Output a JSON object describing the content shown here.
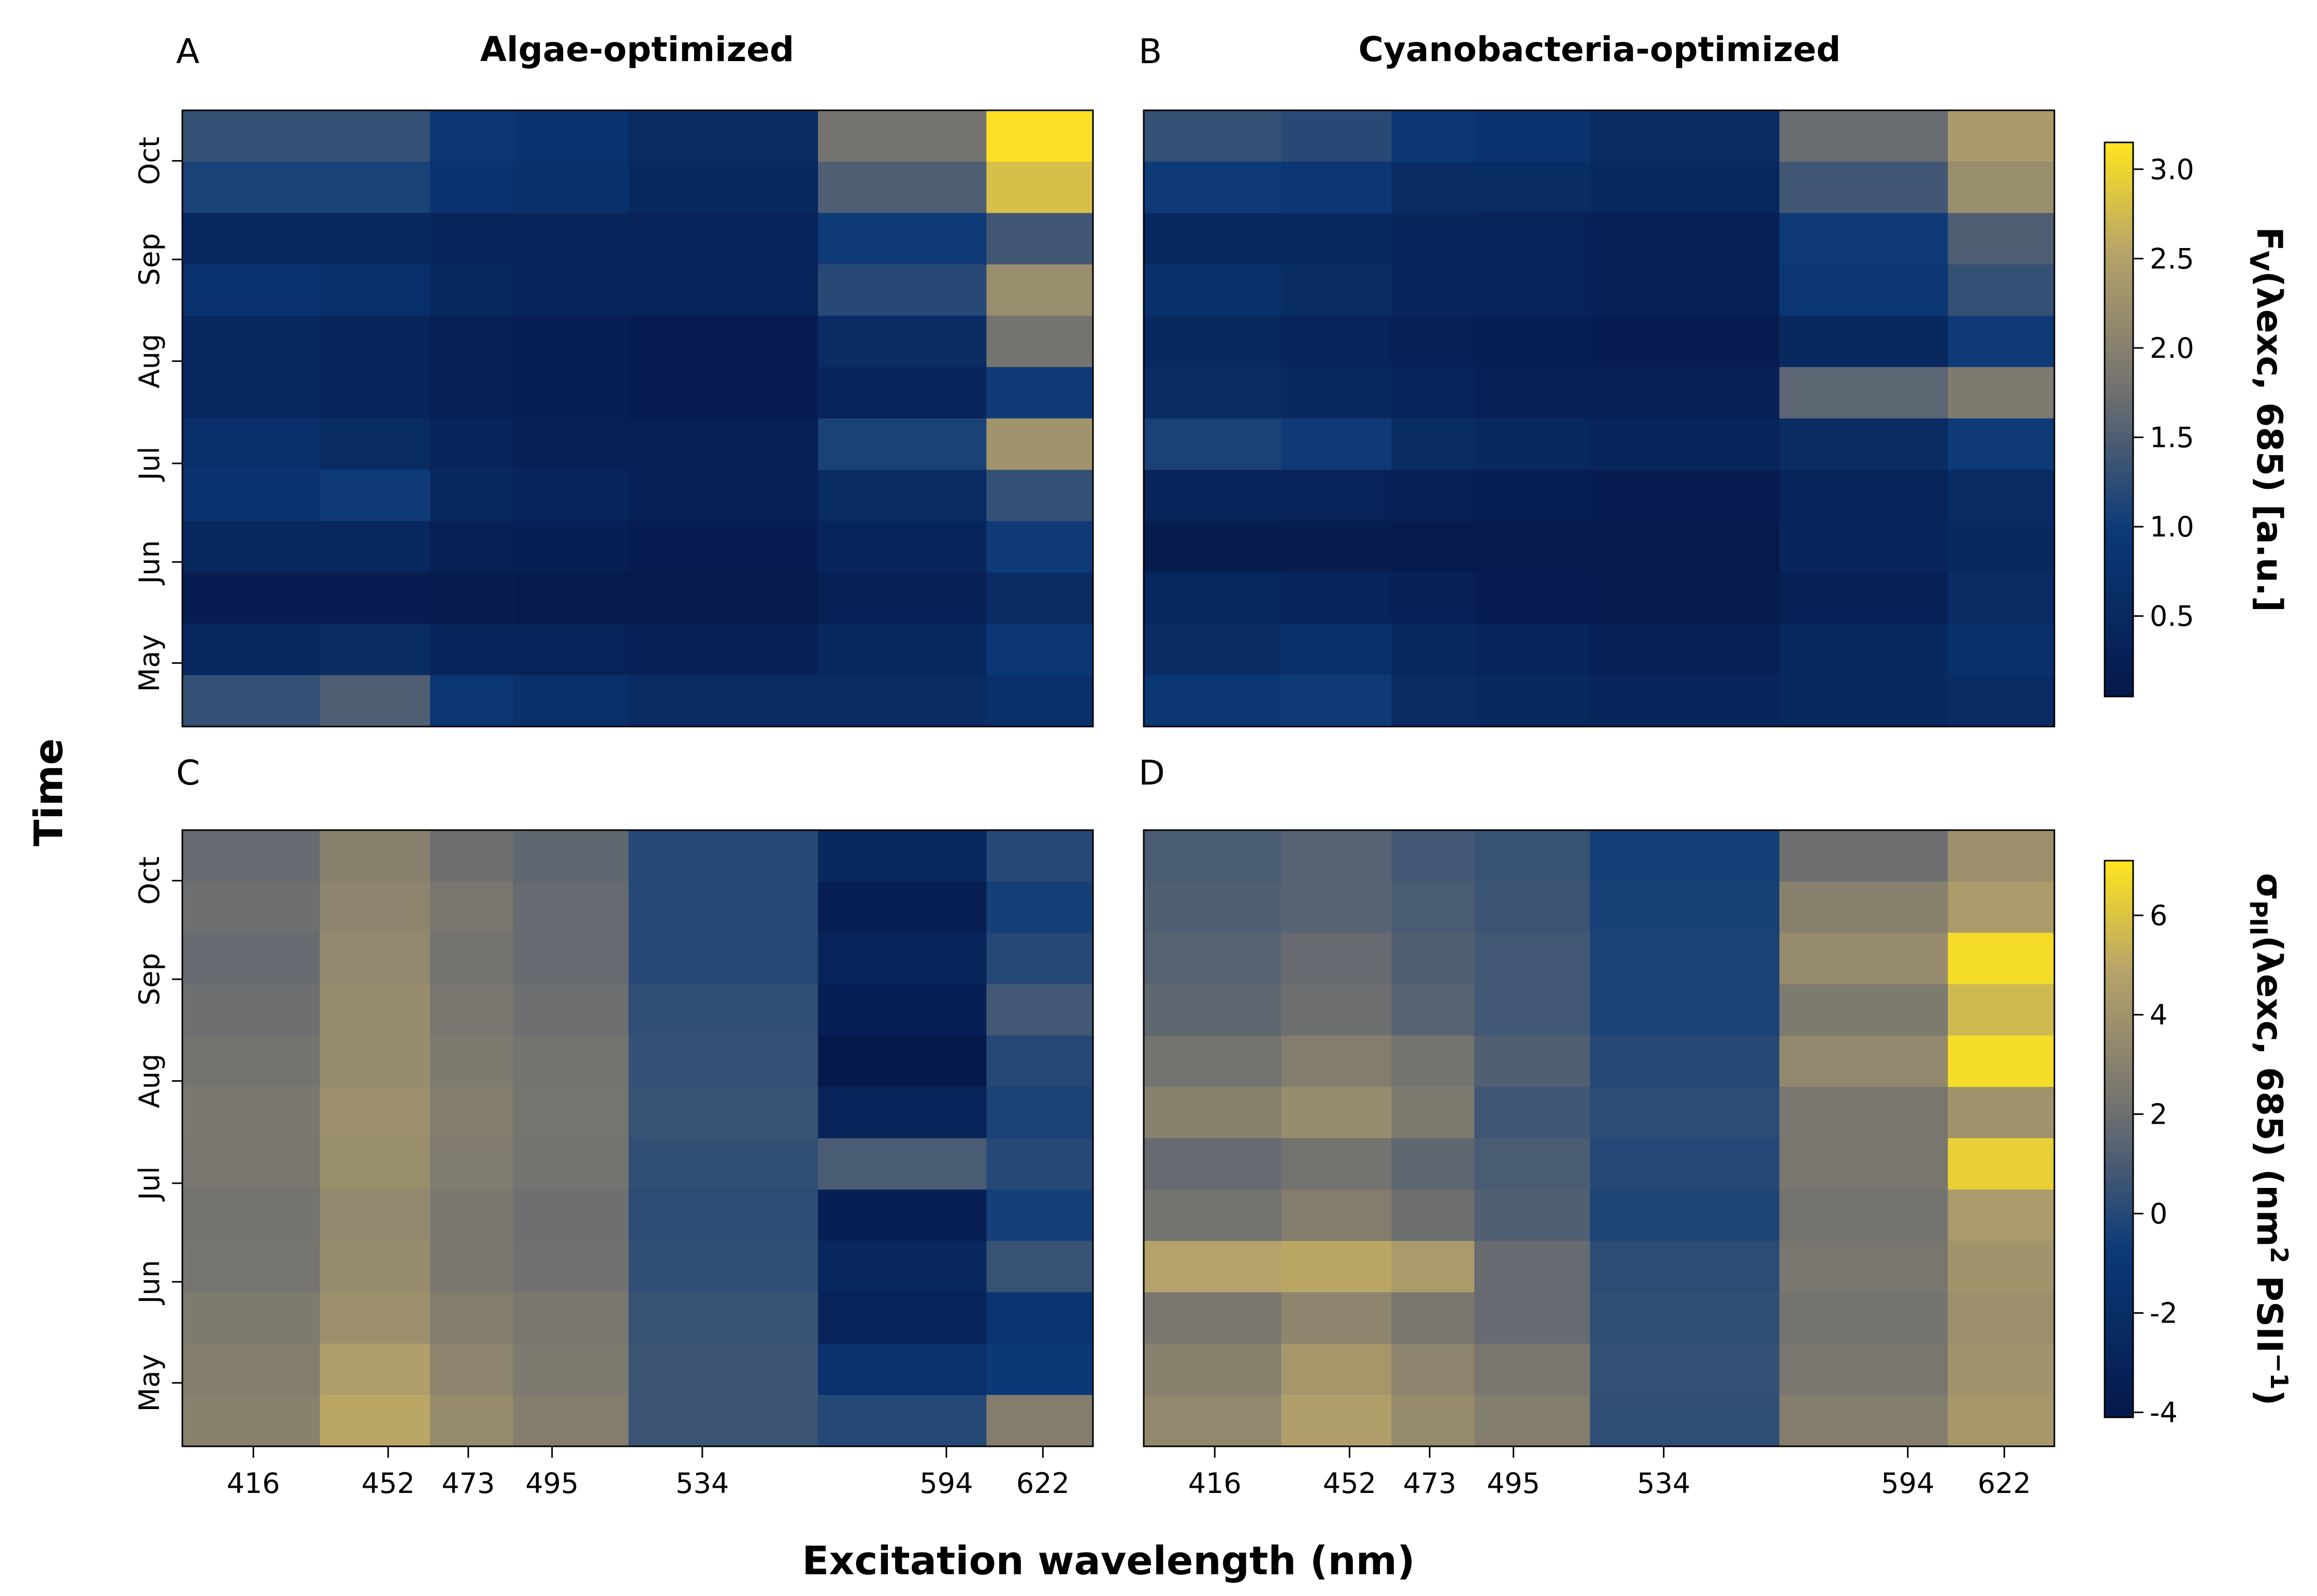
{
  "figure": {
    "xlabel": "Excitation wavelength (nm)",
    "ylabel": "Time"
  },
  "colorbars": [
    {
      "name": "fv",
      "title_main": "F",
      "title_sub": "V",
      "title_rest": "(λexc, 685) [a.u.]",
      "ticks": [
        "0.5",
        "1.0",
        "1.5",
        "2.0",
        "2.5",
        "3.0"
      ],
      "tick_values": [
        0.5,
        1.0,
        1.5,
        2.0,
        2.5,
        3.0
      ],
      "range": [
        0.05,
        3.15
      ]
    },
    {
      "name": "sigma",
      "title_main": "σ",
      "title_sub": "PII",
      "title_rest_a": "(λexc, 685) (nm",
      "title_sup_a": "2",
      "title_rest_b": " PSII",
      "title_sup_b": "−1",
      "title_rest_c": ")",
      "ticks": [
        "-4",
        "-2",
        "0",
        "2",
        "4",
        "6"
      ],
      "tick_values": [
        -4,
        -2,
        0,
        2,
        4,
        6
      ],
      "range": [
        -4.1,
        7.1
      ]
    }
  ],
  "colors": {
    "low": "#06184a",
    "mid_low": "#0b3a78",
    "mid": "#707070",
    "mid_high": "#b6a36a",
    "high": "#ffe51e"
  },
  "chart_data": [
    {
      "type": "heatmap",
      "panel": "A",
      "title": "Algae-optimized",
      "colorbar": "fv",
      "x_ticks": [
        "416",
        "452",
        "473",
        "495",
        "534",
        "594",
        "622"
      ],
      "y_ticks": [
        "Oct",
        "Sep",
        "Aug",
        "Jul",
        "Jun",
        "May"
      ],
      "rows_top_to_bottom": [
        [
          1.3,
          1.3,
          0.9,
          0.8,
          0.6,
          1.8,
          3.1
        ],
        [
          1.1,
          1.1,
          0.8,
          0.7,
          0.5,
          1.5,
          2.8
        ],
        [
          0.5,
          0.5,
          0.4,
          0.4,
          0.35,
          1.0,
          1.4
        ],
        [
          0.8,
          0.7,
          0.5,
          0.4,
          0.35,
          1.2,
          2.2
        ],
        [
          0.5,
          0.4,
          0.3,
          0.25,
          0.2,
          0.6,
          1.8
        ],
        [
          0.5,
          0.4,
          0.3,
          0.25,
          0.2,
          0.4,
          1.0
        ],
        [
          0.7,
          0.6,
          0.4,
          0.3,
          0.3,
          1.1,
          2.3
        ],
        [
          0.8,
          1.0,
          0.5,
          0.4,
          0.3,
          0.6,
          1.3
        ],
        [
          0.5,
          0.5,
          0.3,
          0.25,
          0.2,
          0.4,
          1.0
        ],
        [
          0.2,
          0.2,
          0.15,
          0.12,
          0.1,
          0.3,
          0.6
        ],
        [
          0.5,
          0.6,
          0.4,
          0.35,
          0.3,
          0.5,
          0.9
        ],
        [
          1.3,
          1.5,
          0.9,
          0.7,
          0.6,
          0.6,
          0.7
        ]
      ]
    },
    {
      "type": "heatmap",
      "panel": "B",
      "title": "Cyanobacteria-optimized",
      "colorbar": "fv",
      "x_ticks": [
        "416",
        "452",
        "473",
        "495",
        "534",
        "594",
        "622"
      ],
      "y_ticks": [
        "Oct",
        "Sep",
        "Aug",
        "Jul",
        "Jun",
        "May"
      ],
      "rows_top_to_bottom": [
        [
          1.3,
          1.2,
          0.9,
          0.8,
          0.6,
          1.7,
          2.4
        ],
        [
          1.0,
          0.9,
          0.6,
          0.6,
          0.5,
          1.4,
          2.2
        ],
        [
          0.5,
          0.5,
          0.4,
          0.35,
          0.3,
          1.0,
          1.5
        ],
        [
          0.7,
          0.6,
          0.4,
          0.35,
          0.3,
          0.9,
          1.3
        ],
        [
          0.5,
          0.4,
          0.3,
          0.25,
          0.2,
          0.5,
          1.0
        ],
        [
          0.6,
          0.5,
          0.4,
          0.3,
          0.3,
          1.6,
          1.9
        ],
        [
          1.1,
          1.0,
          0.6,
          0.5,
          0.4,
          0.6,
          1.0
        ],
        [
          0.4,
          0.35,
          0.3,
          0.25,
          0.2,
          0.4,
          0.6
        ],
        [
          0.15,
          0.15,
          0.12,
          0.1,
          0.1,
          0.4,
          0.5
        ],
        [
          0.5,
          0.4,
          0.3,
          0.2,
          0.15,
          0.3,
          0.6
        ],
        [
          0.6,
          0.7,
          0.5,
          0.4,
          0.3,
          0.5,
          0.7
        ],
        [
          0.9,
          1.0,
          0.6,
          0.5,
          0.4,
          0.5,
          0.6
        ]
      ]
    },
    {
      "type": "heatmap",
      "panel": "C",
      "title": "",
      "colorbar": "sigma",
      "x_ticks": [
        "416",
        "452",
        "473",
        "495",
        "534",
        "594",
        "622"
      ],
      "y_ticks": [
        "Oct",
        "Sep",
        "Aug",
        "Jul",
        "Jun",
        "May"
      ],
      "rows_top_to_bottom": [
        [
          1.8,
          3.0,
          2.0,
          1.6,
          0.0,
          -2.5,
          0.0
        ],
        [
          2.0,
          3.2,
          2.4,
          1.8,
          0.0,
          -3.5,
          -0.5
        ],
        [
          1.8,
          3.4,
          2.2,
          1.8,
          0.0,
          -3.0,
          0.0
        ],
        [
          2.0,
          3.6,
          2.4,
          2.0,
          0.3,
          -3.4,
          0.8
        ],
        [
          2.2,
          3.6,
          2.6,
          2.2,
          0.4,
          -4.0,
          0.0
        ],
        [
          2.5,
          3.8,
          2.8,
          2.3,
          0.5,
          -3.0,
          -0.3
        ],
        [
          2.4,
          3.7,
          2.7,
          2.2,
          0.3,
          1.0,
          0.0
        ],
        [
          2.2,
          3.4,
          2.5,
          2.0,
          0.2,
          -3.4,
          -0.5
        ],
        [
          2.3,
          3.6,
          2.5,
          2.1,
          0.3,
          -2.6,
          0.5
        ],
        [
          2.6,
          3.8,
          2.8,
          2.4,
          0.5,
          -3.0,
          -1.2
        ],
        [
          2.8,
          4.6,
          3.2,
          2.6,
          0.6,
          -1.6,
          -0.8
        ],
        [
          3.0,
          5.0,
          3.6,
          2.8,
          0.6,
          0.0,
          2.8
        ]
      ]
    },
    {
      "type": "heatmap",
      "panel": "D",
      "title": "",
      "colorbar": "sigma",
      "x_ticks": [
        "416",
        "452",
        "473",
        "495",
        "534",
        "594",
        "622"
      ],
      "y_ticks": [
        "Oct",
        "Sep",
        "Aug",
        "Jul",
        "Jun",
        "May"
      ],
      "rows_top_to_bottom": [
        [
          1.0,
          1.4,
          0.8,
          0.5,
          -0.5,
          2.0,
          3.8
        ],
        [
          1.2,
          1.4,
          1.0,
          0.6,
          -0.4,
          3.0,
          4.4
        ],
        [
          1.4,
          1.8,
          1.2,
          0.8,
          -0.3,
          3.6,
          6.8
        ],
        [
          1.6,
          2.0,
          1.4,
          0.8,
          -0.3,
          2.6,
          5.6
        ],
        [
          2.2,
          2.8,
          2.2,
          1.2,
          0.0,
          3.4,
          6.8
        ],
        [
          3.0,
          3.6,
          2.6,
          0.7,
          0.2,
          2.4,
          4.0
        ],
        [
          1.8,
          2.2,
          1.6,
          1.0,
          0.0,
          2.4,
          6.4
        ],
        [
          2.2,
          2.8,
          2.0,
          1.2,
          -0.2,
          2.2,
          4.4
        ],
        [
          4.8,
          5.0,
          4.4,
          1.8,
          0.2,
          2.4,
          4.0
        ],
        [
          2.4,
          3.2,
          2.4,
          1.8,
          0.3,
          2.2,
          3.8
        ],
        [
          3.0,
          4.2,
          3.2,
          2.4,
          0.4,
          2.4,
          4.0
        ],
        [
          3.4,
          4.6,
          3.6,
          2.8,
          0.3,
          2.8,
          4.2
        ]
      ]
    }
  ]
}
